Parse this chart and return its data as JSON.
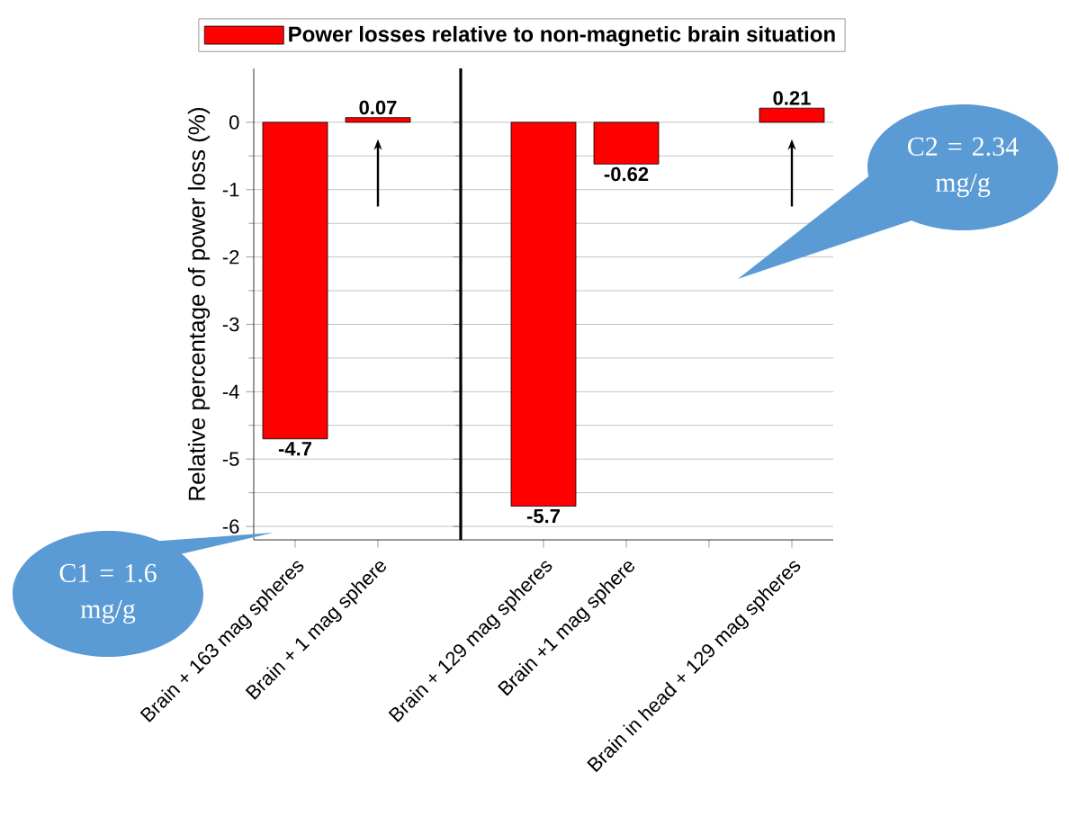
{
  "chart_data": [
    {
      "type": "bar",
      "ylabel": "Relative percentage of power loss  (%)",
      "categories": [
        "Brain + 163 mag spheres",
        "Brain + 1 mag sphere"
      ],
      "series": [
        {
          "name": "Power losses relative to non-magnetic brain situation",
          "color": "#ff0000",
          "values": [
            -4.7,
            0.07
          ]
        }
      ],
      "data_labels": true,
      "ylim": [
        -6.2,
        0.8
      ],
      "yticks": [
        -6,
        -5,
        -4,
        -3,
        -2,
        -1,
        0
      ],
      "grid": "y",
      "legend": "top",
      "annotations": [
        "C1 = 1.6 mg/g"
      ]
    },
    {
      "type": "bar",
      "categories": [
        "Brain + 129 mag spheres",
        "Brain +1 mag sphere",
        null,
        "Brain in head + 129 mag spheres"
      ],
      "series": [
        {
          "color": "#ff0000",
          "values": [
            -5.7,
            -0.62,
            null,
            0.21
          ]
        }
      ],
      "data_labels": true,
      "ylim": [
        -6.2,
        0.8
      ],
      "yticks": [
        -6,
        -5,
        -4,
        -3,
        -2,
        -1,
        0
      ],
      "grid": "y",
      "tick_labels": "x",
      "annotations": [
        "C2 = 2.34 mg/g"
      ]
    }
  ]
}
